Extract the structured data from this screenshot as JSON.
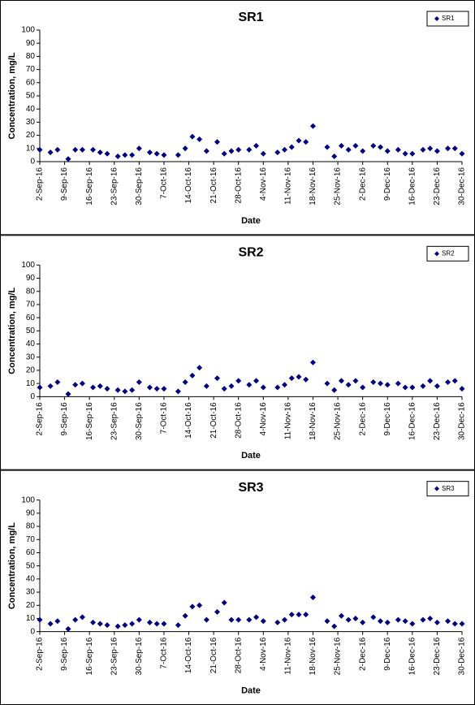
{
  "chart_data": [
    {
      "type": "scatter",
      "title": "SR1",
      "x_label": "Date",
      "y_label": "Concentration, mg/L",
      "legend": "upper right",
      "x": [
        "2-Sep-16",
        "5-Sep-16",
        "7-Sep-16",
        "10-Sep-16",
        "12-Sep-16",
        "14-Sep-16",
        "17-Sep-16",
        "19-Sep-16",
        "21-Sep-16",
        "24-Sep-16",
        "26-Sep-16",
        "28-Sep-16",
        "30-Sep-16",
        "3-Oct-16",
        "5-Oct-16",
        "7-Oct-16",
        "11-Oct-16",
        "13-Oct-16",
        "15-Oct-16",
        "17-Oct-16",
        "19-Oct-16",
        "22-Oct-16",
        "24-Oct-16",
        "26-Oct-16",
        "28-Oct-16",
        "31-Oct-16",
        "2-Nov-16",
        "4-Nov-16",
        "8-Nov-16",
        "10-Nov-16",
        "12-Nov-16",
        "14-Nov-16",
        "16-Nov-16",
        "18-Nov-16",
        "22-Nov-16",
        "24-Nov-16",
        "26-Nov-16",
        "28-Nov-16",
        "30-Nov-16",
        "2-Dec-16",
        "5-Dec-16",
        "7-Dec-16",
        "9-Dec-16",
        "12-Dec-16",
        "14-Dec-16",
        "16-Dec-16",
        "19-Dec-16",
        "21-Dec-16",
        "23-Dec-16",
        "26-Dec-16",
        "28-Dec-16",
        "30-Dec-16"
      ],
      "xlim": [
        "2-Sep-16",
        "30-Dec-16"
      ],
      "xticks": [
        "2-Sep-16",
        "9-Sep-16",
        "16-Sep-16",
        "23-Sep-16",
        "30-Sep-16",
        "7-Oct-16",
        "14-Oct-16",
        "21-Oct-16",
        "28-Oct-16",
        "4-Nov-16",
        "11-Nov-16",
        "18-Nov-16",
        "25-Nov-16",
        "2-Dec-16",
        "9-Dec-16",
        "16-Dec-16",
        "23-Dec-16",
        "30-Dec-16"
      ],
      "ylim": [
        0,
        100
      ],
      "yticks": [
        0,
        10,
        20,
        30,
        40,
        50,
        60,
        70,
        80,
        90,
        100
      ],
      "series": [
        {
          "name": "SR1",
          "color": "#000080",
          "values": [
            9,
            7,
            9,
            2,
            9,
            9,
            9,
            7,
            6,
            4,
            5,
            5,
            10,
            7,
            6,
            5,
            5,
            10,
            19,
            17,
            8,
            15,
            6,
            8,
            9,
            9,
            12,
            6,
            7,
            9,
            11,
            16,
            15,
            27,
            11,
            4,
            12,
            9,
            12,
            8,
            12,
            11,
            8,
            9,
            6,
            6,
            9,
            10,
            8,
            10,
            10,
            6
          ]
        }
      ]
    },
    {
      "type": "scatter",
      "title": "SR2",
      "x_label": "Date",
      "y_label": "Concentration, mg/L",
      "legend": "upper right",
      "x": [
        "2-Sep-16",
        "5-Sep-16",
        "7-Sep-16",
        "10-Sep-16",
        "12-Sep-16",
        "14-Sep-16",
        "17-Sep-16",
        "19-Sep-16",
        "21-Sep-16",
        "24-Sep-16",
        "26-Sep-16",
        "28-Sep-16",
        "30-Sep-16",
        "3-Oct-16",
        "5-Oct-16",
        "7-Oct-16",
        "11-Oct-16",
        "13-Oct-16",
        "15-Oct-16",
        "17-Oct-16",
        "19-Oct-16",
        "22-Oct-16",
        "24-Oct-16",
        "26-Oct-16",
        "28-Oct-16",
        "31-Oct-16",
        "2-Nov-16",
        "4-Nov-16",
        "8-Nov-16",
        "10-Nov-16",
        "12-Nov-16",
        "14-Nov-16",
        "16-Nov-16",
        "18-Nov-16",
        "22-Nov-16",
        "24-Nov-16",
        "26-Nov-16",
        "28-Nov-16",
        "30-Nov-16",
        "2-Dec-16",
        "5-Dec-16",
        "7-Dec-16",
        "9-Dec-16",
        "12-Dec-16",
        "14-Dec-16",
        "16-Dec-16",
        "19-Dec-16",
        "21-Dec-16",
        "23-Dec-16",
        "26-Dec-16",
        "28-Dec-16",
        "30-Dec-16"
      ],
      "xlim": [
        "2-Sep-16",
        "30-Dec-16"
      ],
      "xticks": [
        "2-Sep-16",
        "9-Sep-16",
        "16-Sep-16",
        "23-Sep-16",
        "30-Sep-16",
        "7-Oct-16",
        "14-Oct-16",
        "21-Oct-16",
        "28-Oct-16",
        "4-Nov-16",
        "11-Nov-16",
        "18-Nov-16",
        "25-Nov-16",
        "2-Dec-16",
        "9-Dec-16",
        "16-Dec-16",
        "23-Dec-16",
        "30-Dec-16"
      ],
      "ylim": [
        0,
        100
      ],
      "yticks": [
        0,
        10,
        20,
        30,
        40,
        50,
        60,
        70,
        80,
        90,
        100
      ],
      "series": [
        {
          "name": "SR2",
          "color": "#000080",
          "values": [
            7,
            8,
            11,
            2,
            9,
            10,
            7,
            8,
            6,
            5,
            4,
            5,
            11,
            7,
            6,
            6,
            4,
            11,
            16,
            22,
            8,
            14,
            6,
            8,
            12,
            9,
            12,
            7,
            7,
            9,
            14,
            15,
            13,
            26,
            10,
            5,
            12,
            9,
            12,
            7,
            11,
            10,
            9,
            10,
            7,
            7,
            8,
            12,
            8,
            11,
            12,
            6
          ]
        }
      ]
    },
    {
      "type": "scatter",
      "title": "SR3",
      "x_label": "Date",
      "y_label": "Concentration, mg/L",
      "legend": "upper right",
      "x": [
        "2-Sep-16",
        "5-Sep-16",
        "7-Sep-16",
        "10-Sep-16",
        "12-Sep-16",
        "14-Sep-16",
        "17-Sep-16",
        "19-Sep-16",
        "21-Sep-16",
        "24-Sep-16",
        "26-Sep-16",
        "28-Sep-16",
        "30-Sep-16",
        "3-Oct-16",
        "5-Oct-16",
        "7-Oct-16",
        "11-Oct-16",
        "13-Oct-16",
        "15-Oct-16",
        "17-Oct-16",
        "19-Oct-16",
        "22-Oct-16",
        "24-Oct-16",
        "26-Oct-16",
        "28-Oct-16",
        "31-Oct-16",
        "2-Nov-16",
        "4-Nov-16",
        "8-Nov-16",
        "10-Nov-16",
        "12-Nov-16",
        "14-Nov-16",
        "16-Nov-16",
        "18-Nov-16",
        "22-Nov-16",
        "24-Nov-16",
        "26-Nov-16",
        "28-Nov-16",
        "30-Nov-16",
        "2-Dec-16",
        "5-Dec-16",
        "7-Dec-16",
        "9-Dec-16",
        "12-Dec-16",
        "14-Dec-16",
        "16-Dec-16",
        "19-Dec-16",
        "21-Dec-16",
        "23-Dec-16",
        "26-Dec-16",
        "28-Dec-16",
        "30-Dec-16"
      ],
      "xlim": [
        "2-Sep-16",
        "30-Dec-16"
      ],
      "xticks": [
        "2-Sep-16",
        "9-Sep-16",
        "16-Sep-16",
        "23-Sep-16",
        "30-Sep-16",
        "7-Oct-16",
        "14-Oct-16",
        "21-Oct-16",
        "28-Oct-16",
        "4-Nov-16",
        "11-Nov-16",
        "18-Nov-16",
        "25-Nov-16",
        "2-Dec-16",
        "9-Dec-16",
        "16-Dec-16",
        "23-Dec-16",
        "30-Dec-16"
      ],
      "ylim": [
        0,
        100
      ],
      "yticks": [
        0,
        10,
        20,
        30,
        40,
        50,
        60,
        70,
        80,
        90,
        100
      ],
      "series": [
        {
          "name": "SR3",
          "color": "#000080",
          "values": [
            9,
            6,
            8,
            2,
            9,
            11,
            7,
            6,
            5,
            4,
            5,
            6,
            9,
            7,
            6,
            6,
            5,
            12,
            19,
            20,
            9,
            15,
            22,
            9,
            9,
            9,
            11,
            8,
            7,
            9,
            13,
            13,
            13,
            26,
            8,
            4,
            12,
            9,
            10,
            7,
            11,
            8,
            7,
            9,
            8,
            6,
            9,
            10,
            7,
            8,
            6,
            6
          ]
        }
      ]
    }
  ]
}
